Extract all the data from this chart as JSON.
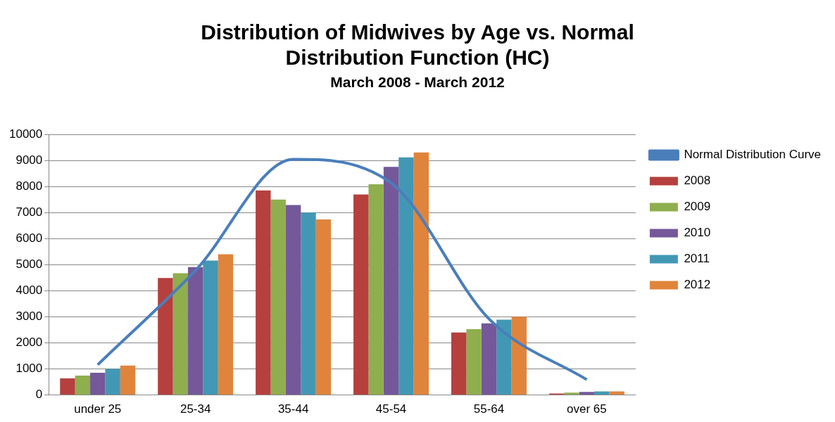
{
  "chart_data": {
    "type": "bar",
    "title": [
      "Distribution of Midwives by Age vs. Normal",
      "Distribution Function (HC)"
    ],
    "subtitle": "March 2008 - March 2012",
    "categories": [
      "under 25",
      "25-34",
      "35-44",
      "45-54",
      "55-64",
      "over 65"
    ],
    "series": [
      {
        "name": "2008",
        "color": "#b5403d",
        "values": [
          640,
          4490,
          7850,
          7700,
          2400,
          60
        ]
      },
      {
        "name": "2009",
        "color": "#8fae4e",
        "values": [
          745,
          4670,
          7500,
          8090,
          2530,
          90
        ]
      },
      {
        "name": "2010",
        "color": "#74589a",
        "values": [
          850,
          4910,
          7290,
          8760,
          2750,
          120
        ]
      },
      {
        "name": "2011",
        "color": "#4298b4",
        "values": [
          1000,
          5160,
          7000,
          9120,
          2890,
          140
        ]
      },
      {
        "name": "2012",
        "color": "#e0843c",
        "values": [
          1130,
          5400,
          6740,
          9310,
          3000,
          140
        ]
      },
      {
        "name": "Normal Distribution Curve",
        "type": "line",
        "color": "#4a7ebb",
        "values": [
          1160,
          4780,
          9050,
          8140,
          2920,
          590
        ]
      }
    ],
    "ylim": [
      0,
      10000
    ],
    "yticks": [
      0,
      1000,
      2000,
      3000,
      4000,
      5000,
      6000,
      7000,
      8000,
      9000,
      10000
    ],
    "grid": "y",
    "legend": "right",
    "marker": "none",
    "line_style": "solid"
  }
}
